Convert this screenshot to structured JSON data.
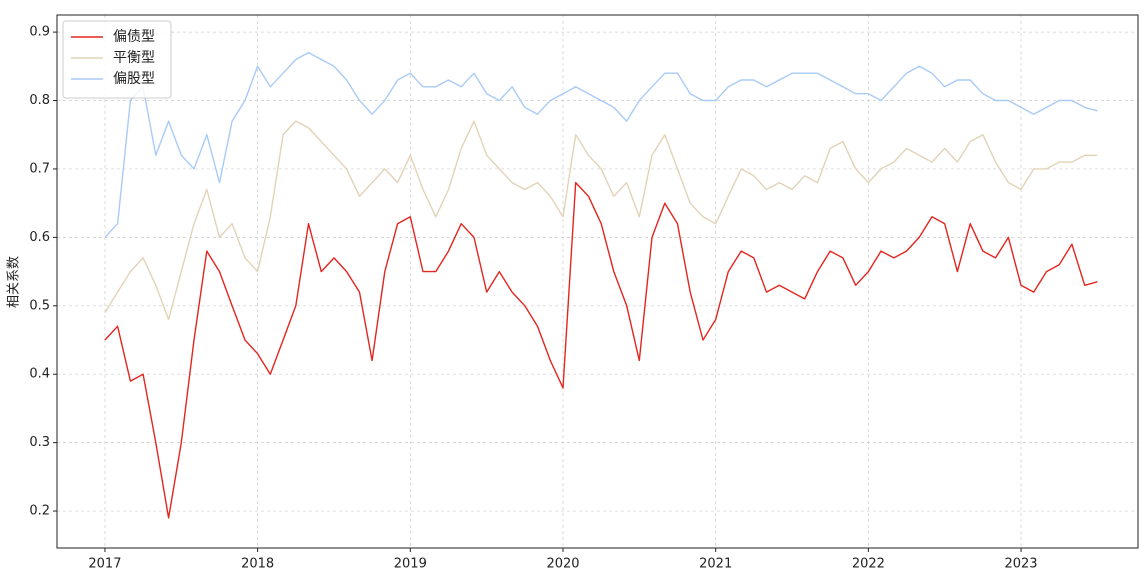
{
  "chart_data": {
    "type": "line",
    "ylabel": "相关系数",
    "x": [
      2017,
      2017.083,
      2017.167,
      2017.25,
      2017.333,
      2017.417,
      2017.5,
      2017.583,
      2017.667,
      2017.75,
      2017.833,
      2017.917,
      2018,
      2018.083,
      2018.167,
      2018.25,
      2018.333,
      2018.417,
      2018.5,
      2018.583,
      2018.667,
      2018.75,
      2018.833,
      2018.917,
      2019,
      2019.083,
      2019.167,
      2019.25,
      2019.333,
      2019.417,
      2019.5,
      2019.583,
      2019.667,
      2019.75,
      2019.833,
      2019.917,
      2020,
      2020.083,
      2020.167,
      2020.25,
      2020.333,
      2020.417,
      2020.5,
      2020.583,
      2020.667,
      2020.75,
      2020.833,
      2020.917,
      2021,
      2021.083,
      2021.167,
      2021.25,
      2021.333,
      2021.417,
      2021.5,
      2021.583,
      2021.667,
      2021.75,
      2021.833,
      2021.917,
      2022,
      2022.083,
      2022.167,
      2022.25,
      2022.333,
      2022.417,
      2022.5,
      2022.583,
      2022.667,
      2022.75,
      2022.833,
      2022.917,
      2023,
      2023.083,
      2023.167,
      2023.25,
      2023.333,
      2023.417,
      2023.5
    ],
    "series": [
      {
        "name": "偏债型",
        "color": "#e3261f",
        "values": [
          0.45,
          0.47,
          0.39,
          0.4,
          0.3,
          0.19,
          0.3,
          0.45,
          0.58,
          0.55,
          0.5,
          0.45,
          0.43,
          0.4,
          0.45,
          0.5,
          0.62,
          0.55,
          0.57,
          0.55,
          0.52,
          0.42,
          0.55,
          0.62,
          0.63,
          0.55,
          0.55,
          0.58,
          0.62,
          0.6,
          0.52,
          0.55,
          0.52,
          0.5,
          0.47,
          0.42,
          0.38,
          0.68,
          0.66,
          0.62,
          0.55,
          0.5,
          0.42,
          0.6,
          0.65,
          0.62,
          0.52,
          0.45,
          0.48,
          0.55,
          0.58,
          0.57,
          0.52,
          0.53,
          0.52,
          0.51,
          0.55,
          0.58,
          0.57,
          0.53,
          0.55,
          0.58,
          0.57,
          0.58,
          0.6,
          0.63,
          0.62,
          0.55,
          0.62,
          0.58,
          0.57,
          0.6,
          0.53,
          0.52,
          0.55,
          0.56,
          0.59,
          0.53,
          0.535
        ]
      },
      {
        "name": "平衡型",
        "color": "#e2d3b8",
        "values": [
          0.49,
          0.52,
          0.55,
          0.57,
          0.53,
          0.48,
          0.55,
          0.62,
          0.67,
          0.6,
          0.62,
          0.57,
          0.55,
          0.63,
          0.75,
          0.77,
          0.76,
          0.74,
          0.72,
          0.7,
          0.66,
          0.68,
          0.7,
          0.68,
          0.72,
          0.67,
          0.63,
          0.67,
          0.73,
          0.77,
          0.72,
          0.7,
          0.68,
          0.67,
          0.68,
          0.66,
          0.63,
          0.75,
          0.72,
          0.7,
          0.66,
          0.68,
          0.63,
          0.72,
          0.75,
          0.7,
          0.65,
          0.63,
          0.62,
          0.66,
          0.7,
          0.69,
          0.67,
          0.68,
          0.67,
          0.69,
          0.68,
          0.73,
          0.74,
          0.7,
          0.68,
          0.7,
          0.71,
          0.73,
          0.72,
          0.71,
          0.73,
          0.71,
          0.74,
          0.75,
          0.71,
          0.68,
          0.67,
          0.7,
          0.7,
          0.71,
          0.71,
          0.72,
          0.72
        ]
      },
      {
        "name": "偏股型",
        "color": "#a8cbf7",
        "values": [
          0.6,
          0.62,
          0.8,
          0.82,
          0.72,
          0.77,
          0.72,
          0.7,
          0.75,
          0.68,
          0.77,
          0.8,
          0.85,
          0.82,
          0.84,
          0.86,
          0.87,
          0.86,
          0.85,
          0.83,
          0.8,
          0.78,
          0.8,
          0.83,
          0.84,
          0.82,
          0.82,
          0.83,
          0.82,
          0.84,
          0.81,
          0.8,
          0.82,
          0.79,
          0.78,
          0.8,
          0.81,
          0.82,
          0.81,
          0.8,
          0.79,
          0.77,
          0.8,
          0.82,
          0.84,
          0.84,
          0.81,
          0.8,
          0.8,
          0.82,
          0.83,
          0.83,
          0.82,
          0.83,
          0.84,
          0.84,
          0.84,
          0.83,
          0.82,
          0.81,
          0.81,
          0.8,
          0.82,
          0.84,
          0.85,
          0.84,
          0.82,
          0.83,
          0.83,
          0.81,
          0.8,
          0.8,
          0.79,
          0.78,
          0.79,
          0.8,
          0.8,
          0.79,
          0.785
        ]
      }
    ],
    "xlim": [
      2016.686,
      2023.766
    ],
    "xticks": [
      2017,
      2018,
      2019,
      2020,
      2021,
      2022,
      2023
    ],
    "ylim": [
      0.146,
      0.925
    ],
    "yticks": [
      0.2,
      0.3,
      0.4,
      0.5,
      0.6,
      0.7,
      0.8,
      0.9
    ],
    "grid": true,
    "legend": "upper left"
  }
}
